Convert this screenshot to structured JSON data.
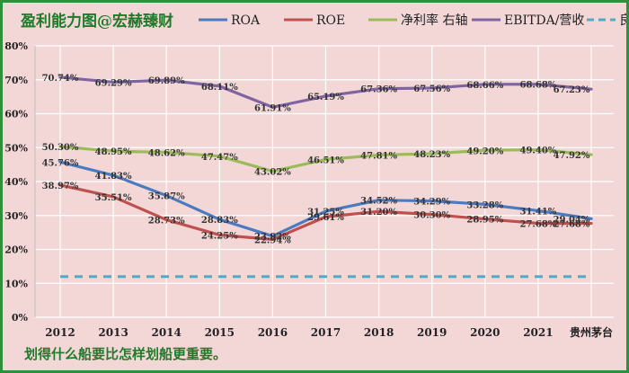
{
  "chart_data": {
    "type": "line",
    "title": "盈利能力图@宏赫臻财",
    "categories": [
      "2012",
      "2013",
      "2014",
      "2015",
      "2016",
      "2017",
      "2018",
      "2019",
      "2020",
      "2021",
      "贵州茅台"
    ],
    "ylim": [
      0,
      80
    ],
    "yticks": [
      "0%",
      "10%",
      "20%",
      "30%",
      "40%",
      "50%",
      "60%",
      "70%",
      "80%"
    ],
    "yunit": "%",
    "series": [
      {
        "name": "ROA",
        "color": "#4a7ac0",
        "dash": false,
        "values": [
          45.76,
          41.83,
          35.87,
          28.83,
          23.92,
          31.25,
          34.52,
          34.29,
          33.28,
          31.41,
          29.04
        ],
        "labels": [
          "45.76%",
          "41.83%",
          "35.87%",
          "28.83%",
          "23.92%",
          "31.25%",
          "34.52%",
          "34.29%",
          "33.28%",
          "31.41%",
          "29.04%"
        ]
      },
      {
        "name": "ROE",
        "color": "#c0504d",
        "dash": false,
        "values": [
          38.97,
          35.51,
          28.73,
          24.25,
          22.94,
          29.61,
          31.2,
          30.3,
          28.95,
          27.68,
          27.68
        ],
        "labels": [
          "38.97%",
          "35.51%",
          "28.73%",
          "24.25%",
          "22.94%",
          "29.61%",
          "31.20%",
          "30.30%",
          "28.95%",
          "27.68%",
          "27.68%"
        ]
      },
      {
        "name": "净利率 右轴",
        "color": "#9bbb59",
        "dash": false,
        "values": [
          50.3,
          48.95,
          48.62,
          47.47,
          43.02,
          46.51,
          47.81,
          48.23,
          49.2,
          49.4,
          47.92
        ],
        "labels": [
          "50.30%",
          "48.95%",
          "48.62%",
          "47.47%",
          "43.02%",
          "46.51%",
          "47.81%",
          "48.23%",
          "49.20%",
          "49.40%",
          "47.92%"
        ]
      },
      {
        "name": "EBITDA/营收",
        "color": "#8064a2",
        "dash": false,
        "values": [
          70.74,
          69.29,
          69.89,
          68.11,
          61.91,
          65.19,
          67.36,
          67.56,
          68.66,
          68.68,
          67.23
        ],
        "labels": [
          "70.74%",
          "69.29%",
          "69.89%",
          "68.11%",
          "61.91%",
          "65.19%",
          "67.36%",
          "67.56%",
          "68.66%",
          "68.68%",
          "67.23%"
        ]
      },
      {
        "name": "良好线",
        "color": "#4bacc6",
        "dash": true,
        "values": [
          12,
          12,
          12,
          12,
          12,
          12,
          12,
          12,
          12,
          12,
          12
        ],
        "labels": []
      }
    ]
  },
  "footnote": "划得什么船要比怎样划船更重要。"
}
